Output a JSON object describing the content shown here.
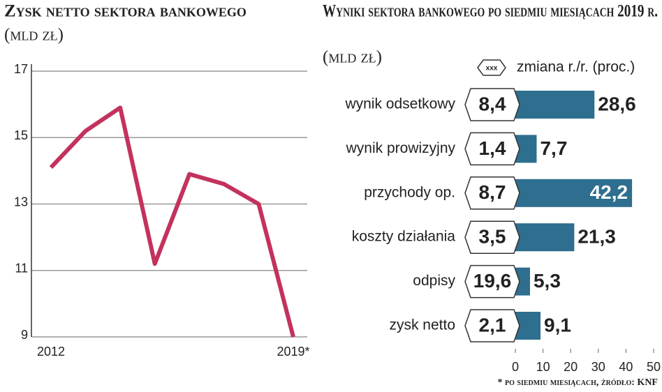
{
  "chart_data": [
    {
      "type": "line",
      "title": "Zysk netto sektora bankowego",
      "subtitle": "(mld zł)",
      "categories": [
        "2012",
        null,
        null,
        null,
        null,
        null,
        null,
        "2019*"
      ],
      "values": [
        14.1,
        15.2,
        15.9,
        11.2,
        13.9,
        13.6,
        13.0,
        9.0
      ],
      "color": "#c3325d",
      "ylim": [
        9,
        17
      ],
      "yticks": [
        9,
        11,
        13,
        15,
        17
      ],
      "grid": true
    },
    {
      "type": "hbar",
      "title": "Wyniki sektora bankowego po siedmiu miesiącach 2019 r.",
      "subtitle": "(mld zł)",
      "categories": [
        "wynik odsetkowy",
        "wynik prowizyjny",
        "przychody op.",
        "koszty działania",
        "odpisy",
        "zysk netto"
      ],
      "amounts": [
        8.4,
        1.4,
        8.7,
        3.5,
        19.6,
        2.1
      ],
      "amount_labels": [
        "8,4",
        "1,4",
        "8,7",
        "3,5",
        "19,6",
        "2,1"
      ],
      "values": [
        28.6,
        7.7,
        42.2,
        21.3,
        5.3,
        9.1
      ],
      "value_labels": [
        "28,6",
        "7,7",
        "42,2",
        "21,3",
        "5,3",
        "9,1"
      ],
      "color": "#2e6e8e",
      "legend_sample": "xxx",
      "legend_label": "zmiana r./r. (proc.)",
      "xlim": [
        0,
        50
      ],
      "xticks": [
        0,
        10,
        20,
        30,
        40,
        50
      ],
      "note": "* po siedmiu miesiącach, źródło: KNF"
    }
  ]
}
